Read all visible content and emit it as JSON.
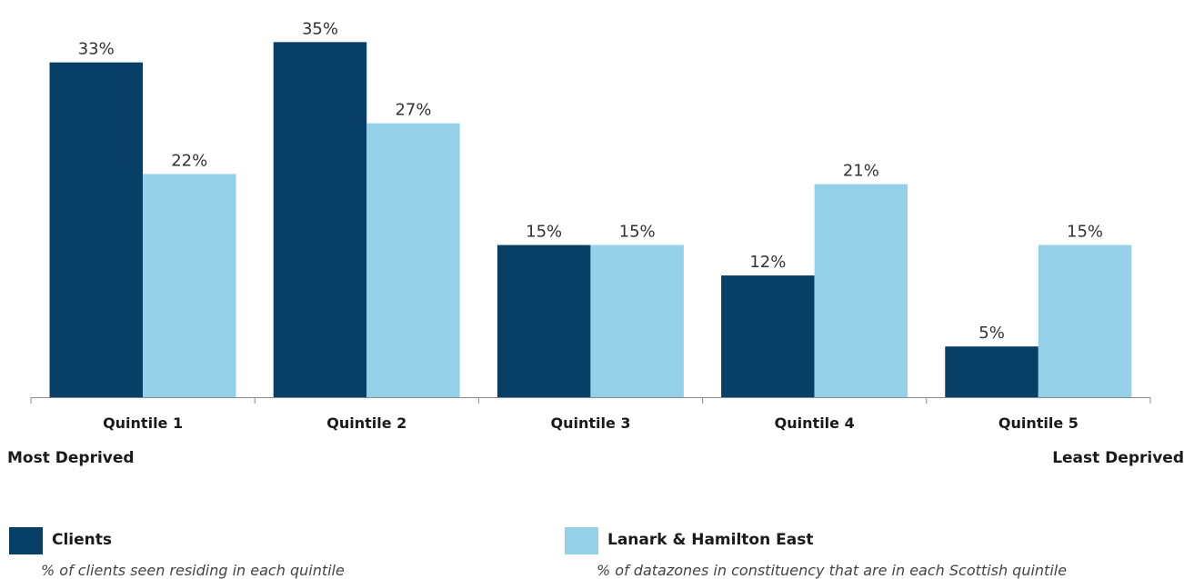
{
  "chart_data": {
    "type": "bar",
    "categories": [
      "Quintile 1",
      "Quintile 2",
      "Quintile 3",
      "Quintile 4",
      "Quintile 5"
    ],
    "series": [
      {
        "name": "Clients",
        "values": [
          33,
          35,
          15,
          12,
          5
        ],
        "color": "#083f66"
      },
      {
        "name": "Lanark & Hamilton East",
        "values": [
          22,
          27,
          15,
          21,
          15
        ],
        "color": "#94d1e8"
      }
    ],
    "value_suffix": "%",
    "ylim": [
      0,
      37
    ],
    "axis_left_label": "Most Deprived",
    "axis_right_label": "Least Deprived",
    "grid": false
  },
  "legend": {
    "clients": {
      "name": "Clients",
      "desc": "% of clients seen residing in each quintile",
      "color": "#083f66"
    },
    "area": {
      "name": "Lanark & Hamilton East",
      "desc": "% of datazones in constituency that are in each Scottish quintile",
      "color": "#94d1e8"
    }
  }
}
